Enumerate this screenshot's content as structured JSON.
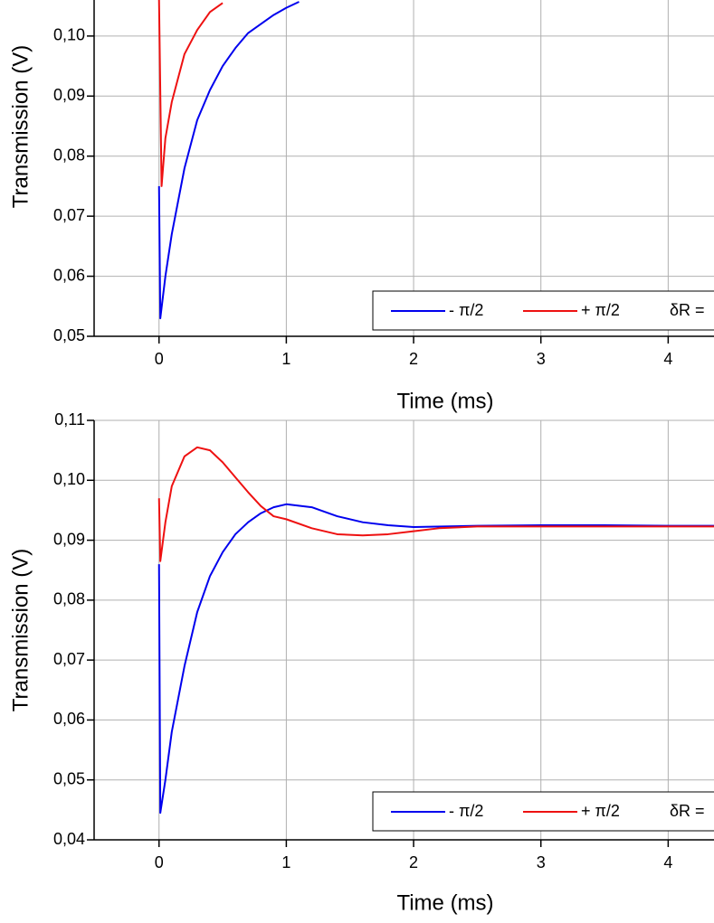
{
  "chart_data": [
    {
      "type": "line",
      "x_label": "Time (ms)",
      "y_label": "Transmission (V)",
      "xlim": [
        -0.51,
        4.36
      ],
      "ylim": [
        0.05,
        0.106
      ],
      "grid": true,
      "xticks": [
        0,
        1,
        2,
        3,
        4
      ],
      "yticks": [
        {
          "value": 0.05,
          "label": "0,05"
        },
        {
          "value": 0.06,
          "label": "0,06"
        },
        {
          "value": 0.07,
          "label": "0,07"
        },
        {
          "value": 0.08,
          "label": "0,08"
        },
        {
          "value": 0.09,
          "label": "0,09"
        },
        {
          "value": 0.1,
          "label": "0,10"
        }
      ],
      "legend_note": "δR =",
      "series": [
        {
          "name": "- π/2",
          "color": "#0000ee",
          "x": [
            0,
            0.01,
            0.05,
            0.1,
            0.2,
            0.3,
            0.4,
            0.5,
            0.6,
            0.7,
            0.8,
            0.9,
            1.0,
            1.1
          ],
          "values": [
            0.075,
            0.053,
            0.06,
            0.067,
            0.078,
            0.086,
            0.091,
            0.095,
            0.098,
            0.1005,
            0.102,
            0.1035,
            0.1047,
            0.1057
          ]
        },
        {
          "name": "+ π/2",
          "color": "#ee1111",
          "x": [
            0,
            0.02,
            0.05,
            0.1,
            0.2,
            0.3,
            0.4,
            0.5
          ],
          "values": [
            0.106,
            0.075,
            0.083,
            0.089,
            0.097,
            0.101,
            0.104,
            0.1055
          ]
        }
      ]
    },
    {
      "type": "line",
      "x_label": "Time (ms)",
      "y_label": "Transmission (V)",
      "xlim": [
        -0.51,
        4.36
      ],
      "ylim": [
        0.04,
        0.11
      ],
      "grid": true,
      "xticks": [
        0,
        1,
        2,
        3,
        4
      ],
      "yticks": [
        {
          "value": 0.04,
          "label": "0,04"
        },
        {
          "value": 0.05,
          "label": "0,05"
        },
        {
          "value": 0.06,
          "label": "0,06"
        },
        {
          "value": 0.07,
          "label": "0,07"
        },
        {
          "value": 0.08,
          "label": "0,08"
        },
        {
          "value": 0.09,
          "label": "0,09"
        },
        {
          "value": 0.1,
          "label": "0,10"
        },
        {
          "value": 0.11,
          "label": "0,11"
        }
      ],
      "legend_note": "δR =",
      "series": [
        {
          "name": "- π/2",
          "color": "#0000ee",
          "x": [
            0,
            0.01,
            0.05,
            0.1,
            0.2,
            0.3,
            0.4,
            0.5,
            0.6,
            0.7,
            0.8,
            0.9,
            1.0,
            1.2,
            1.4,
            1.6,
            1.8,
            2.0,
            2.5,
            3.0,
            3.5,
            4.0,
            4.36
          ],
          "values": [
            0.086,
            0.0445,
            0.05,
            0.058,
            0.069,
            0.078,
            0.084,
            0.088,
            0.091,
            0.093,
            0.0945,
            0.0955,
            0.096,
            0.0955,
            0.094,
            0.093,
            0.0925,
            0.0922,
            0.0924,
            0.0925,
            0.0925,
            0.0924,
            0.0924
          ]
        },
        {
          "name": "+ π/2",
          "color": "#ee1111",
          "x": [
            0,
            0.01,
            0.05,
            0.1,
            0.2,
            0.3,
            0.4,
            0.5,
            0.6,
            0.7,
            0.8,
            0.9,
            1.0,
            1.2,
            1.4,
            1.6,
            1.8,
            2.0,
            2.2,
            2.5,
            3.0,
            3.5,
            4.0,
            4.36
          ],
          "values": [
            0.097,
            0.0865,
            0.093,
            0.099,
            0.104,
            0.1055,
            0.105,
            0.103,
            0.1005,
            0.098,
            0.0957,
            0.094,
            0.0935,
            0.092,
            0.091,
            0.0908,
            0.091,
            0.0915,
            0.092,
            0.0923,
            0.0923,
            0.0923,
            0.0923,
            0.0923
          ]
        }
      ]
    }
  ]
}
